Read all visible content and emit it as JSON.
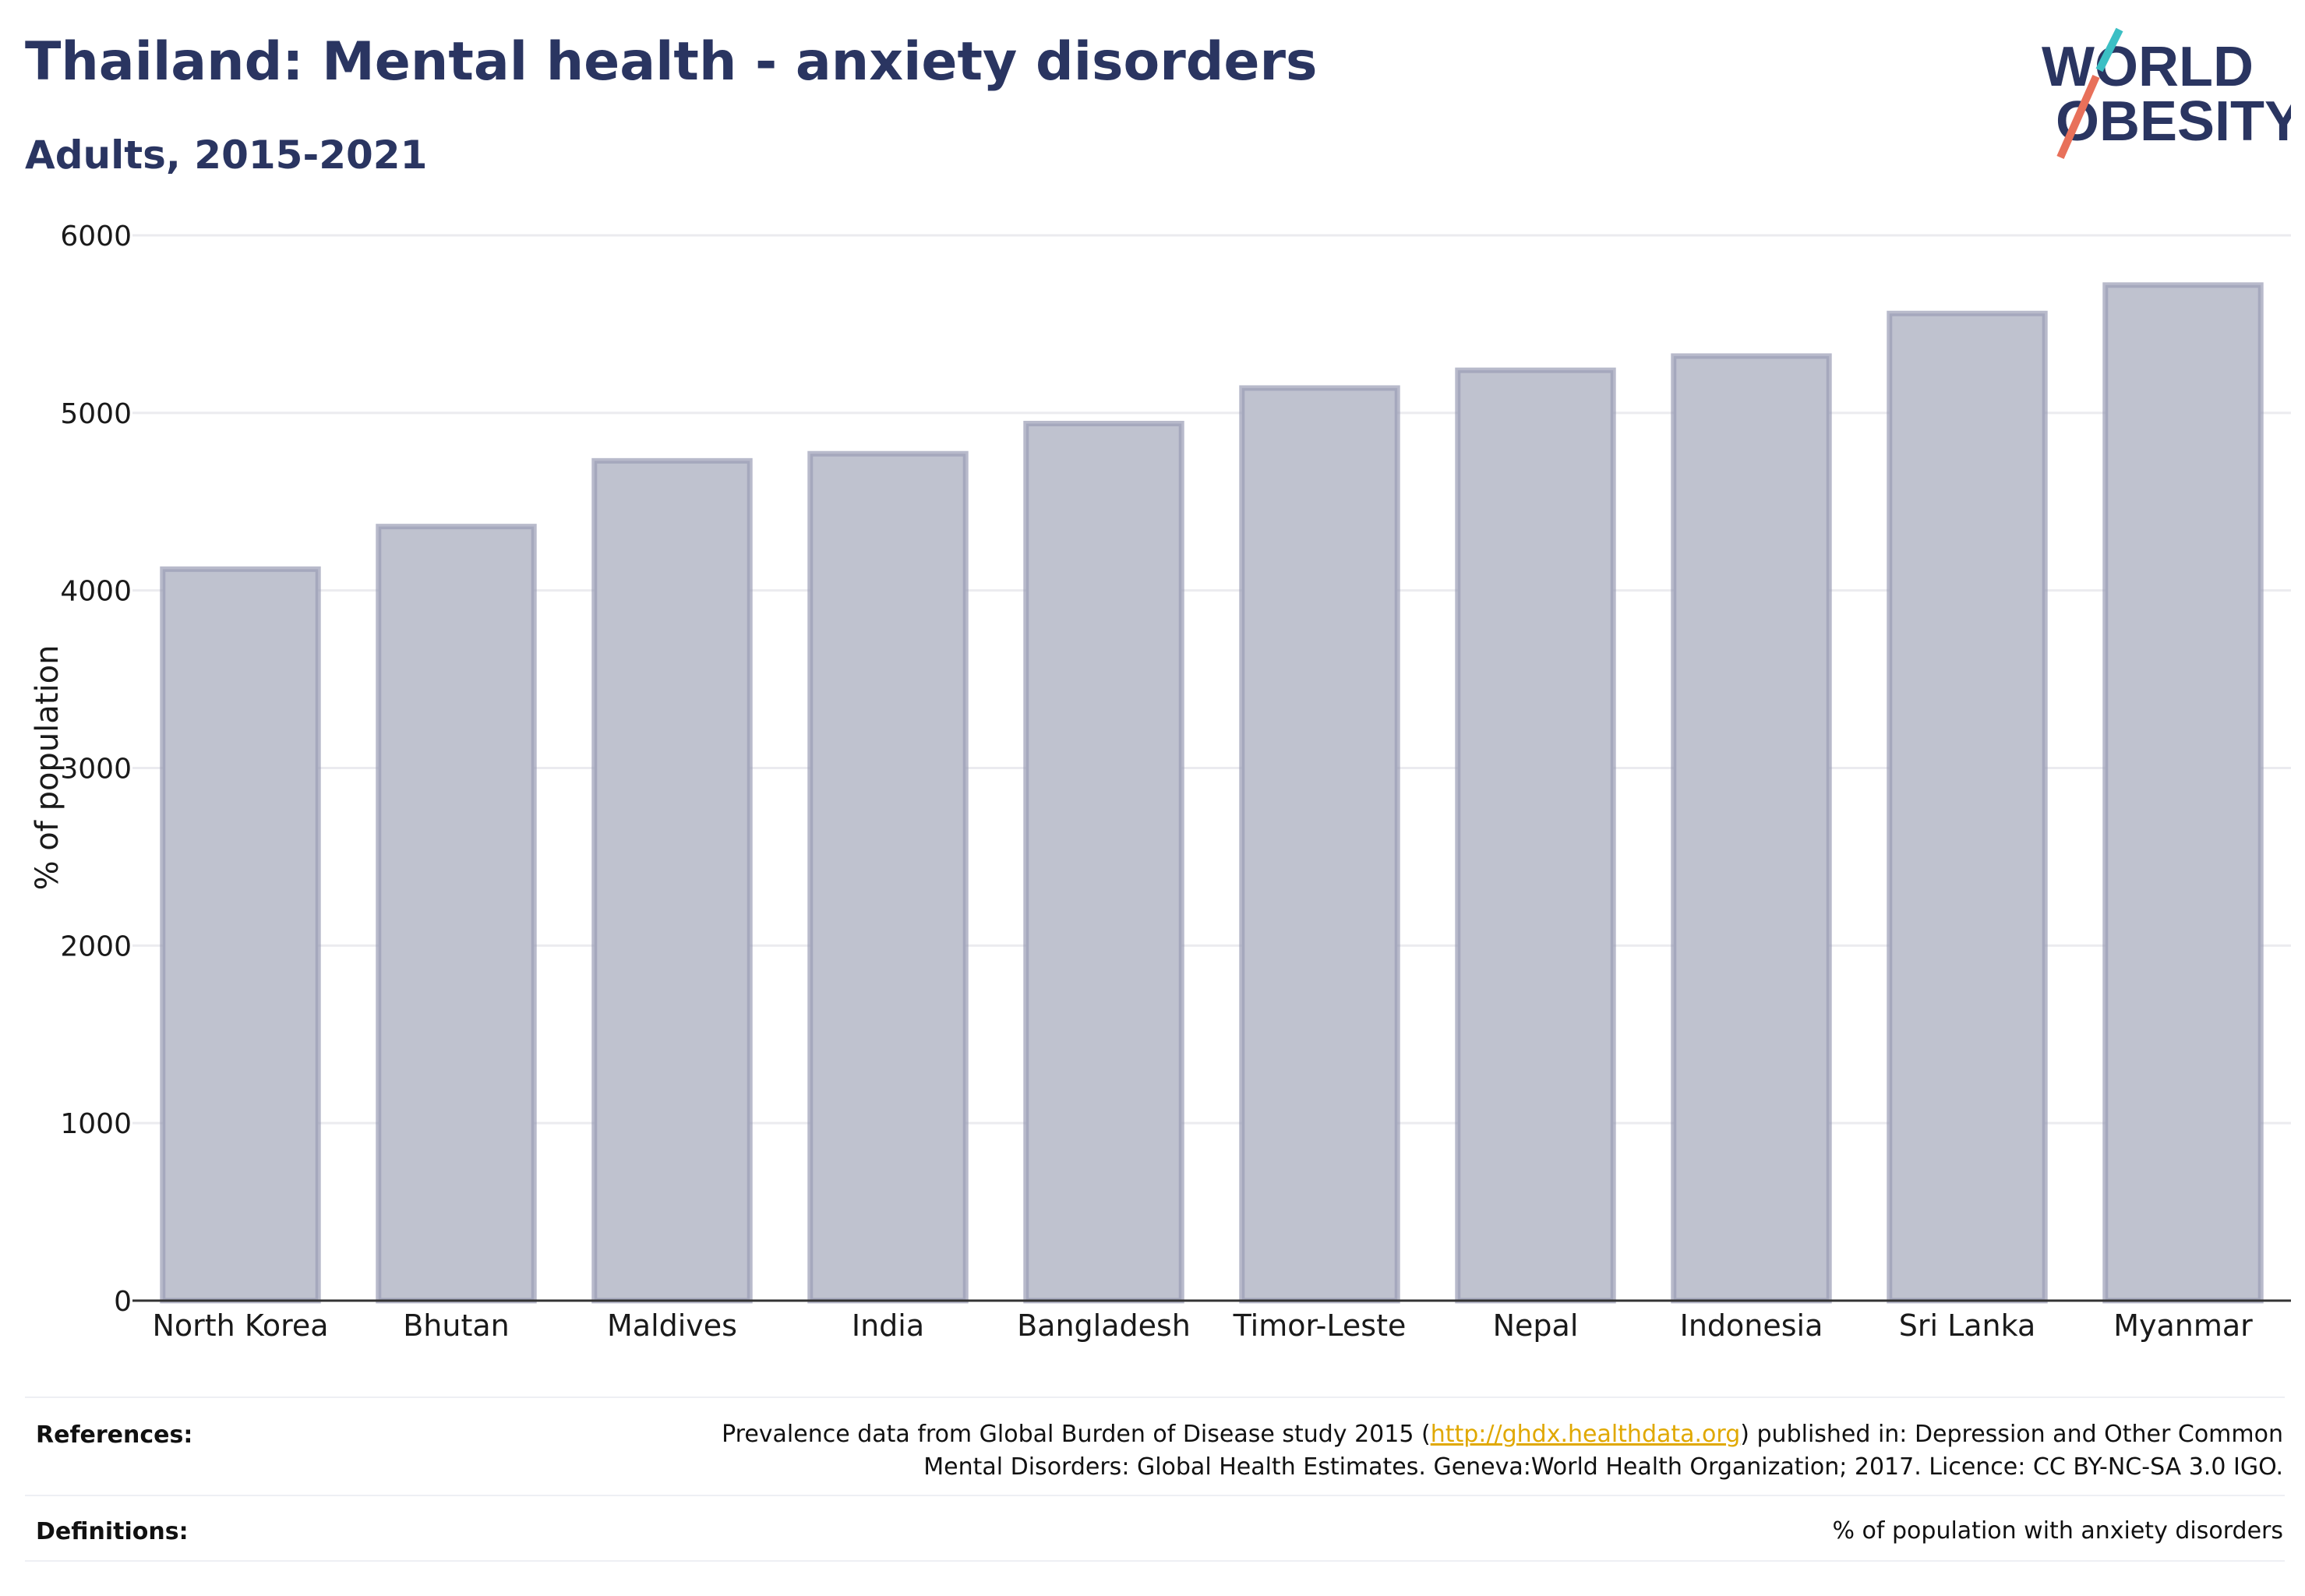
{
  "header": {
    "title": "Thailand: Mental health - anxiety disorders",
    "subtitle": "Adults, 2015-2021"
  },
  "logo": {
    "line1": "WORLD",
    "line2": "OBESITY",
    "colors": {
      "text": "#2a3561",
      "slash_top": "#3bbfc4",
      "slash_bottom": "#e8705a"
    }
  },
  "chart_data": {
    "type": "bar",
    "categories": [
      "North Korea",
      "Bhutan",
      "Maldives",
      "India",
      "Bangladesh",
      "Timor-Leste",
      "Nepal",
      "Indonesia",
      "Sri Lanka",
      "Myanmar"
    ],
    "values": [
      4120,
      4360,
      4730,
      4770,
      4940,
      5140,
      5240,
      5320,
      5560,
      5720
    ],
    "ylabel": "% of population",
    "xlabel": "",
    "ylim": [
      0,
      6000
    ],
    "yticks": [
      0,
      1000,
      2000,
      3000,
      4000,
      5000,
      6000
    ],
    "grid": true,
    "colors": {
      "bar_fill": "#bfc2cf",
      "bar_stroke": "#9a9db5",
      "axis": "#333333",
      "grid": "#ebebef"
    }
  },
  "footer": {
    "references_label": "References:",
    "references_line1_pre": "Prevalence data from Global Burden of Disease study 2015 (",
    "references_link": "http://ghdx.healthdata.org",
    "references_line1_post": ") published in: Depression and Other Common",
    "references_line2": "Mental Disorders: Global Health Estimates. Geneva:World Health Organization; 2017. Licence: CC BY-NC-SA 3.0 IGO.",
    "definitions_label": "Definitions:",
    "definitions_text": "% of population with anxiety disorders"
  }
}
